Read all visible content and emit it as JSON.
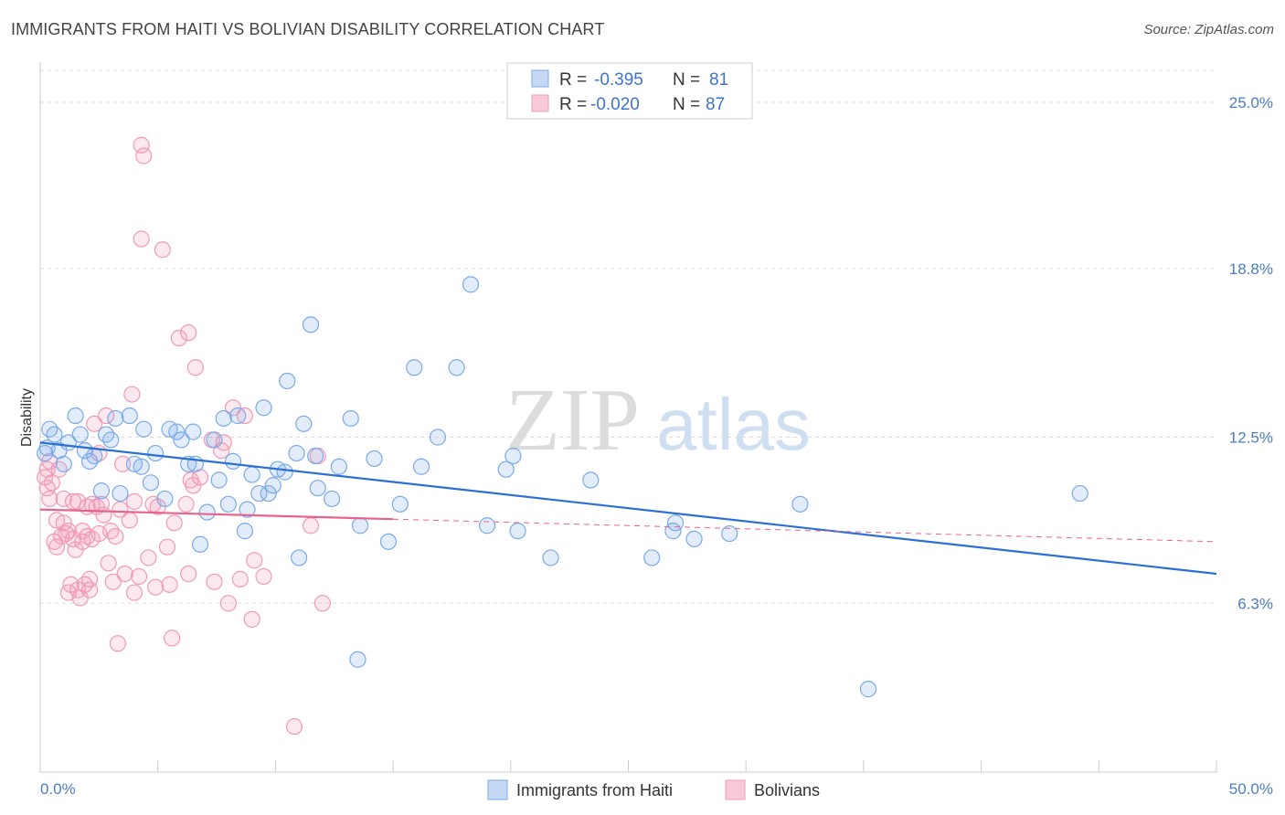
{
  "title": "IMMIGRANTS FROM HAITI VS BOLIVIAN DISABILITY CORRELATION CHART",
  "source": "Source: ZipAtlas.com",
  "watermark": {
    "zip": "ZIP",
    "atlas": "atlas"
  },
  "colors": {
    "haiti": "#7aaae8",
    "haiti_line": "#2a6fd4",
    "bolivia": "#f09ab8",
    "bolivia_line": "#e8628f",
    "tick": "#4a7cc7",
    "grid": "#dddddd"
  },
  "stats": [
    {
      "r_label": "R =",
      "r": "-0.395",
      "n_label": "N =",
      "n": "81"
    },
    {
      "r_label": "R =",
      "r": "-0.020",
      "n_label": "N =",
      "n": "87"
    }
  ],
  "chart_data": {
    "type": "scatter",
    "title": "IMMIGRANTS FROM HAITI VS BOLIVIAN DISABILITY CORRELATION CHART",
    "xlabel": "",
    "ylabel": "Disability",
    "xlim": [
      0,
      50
    ],
    "ylim": [
      0,
      26.5
    ],
    "x_tick_labels": [
      {
        "value": 0,
        "label": "0.0%"
      },
      {
        "value": 50,
        "label": "50.0%"
      }
    ],
    "y_ticks": [
      {
        "value": 6.3,
        "label": "6.3%"
      },
      {
        "value": 12.5,
        "label": "12.5%"
      },
      {
        "value": 18.8,
        "label": "18.8%"
      },
      {
        "value": 25.0,
        "label": "25.0%"
      }
    ],
    "legend_position": "bottom",
    "series": [
      {
        "name": "Immigrants from Haiti",
        "color": "#7aaae8",
        "trend": {
          "x": [
            0,
            50
          ],
          "y": [
            12.3,
            7.4
          ],
          "solid_to": 50
        },
        "points": [
          [
            0.2,
            11.9
          ],
          [
            0.4,
            12.8
          ],
          [
            0.6,
            12.6
          ],
          [
            0.8,
            12.0
          ],
          [
            1.0,
            11.5
          ],
          [
            1.2,
            12.3
          ],
          [
            1.5,
            13.3
          ],
          [
            1.7,
            12.6
          ],
          [
            1.9,
            12.0
          ],
          [
            2.1,
            11.6
          ],
          [
            2.3,
            11.8
          ],
          [
            2.6,
            10.5
          ],
          [
            2.8,
            12.6
          ],
          [
            3.0,
            12.4
          ],
          [
            3.2,
            13.2
          ],
          [
            3.4,
            10.4
          ],
          [
            3.8,
            13.3
          ],
          [
            4.0,
            11.5
          ],
          [
            4.3,
            11.4
          ],
          [
            4.4,
            12.8
          ],
          [
            4.7,
            10.8
          ],
          [
            4.9,
            11.9
          ],
          [
            5.3,
            10.2
          ],
          [
            5.5,
            12.8
          ],
          [
            5.8,
            12.7
          ],
          [
            6.0,
            12.4
          ],
          [
            6.3,
            11.5
          ],
          [
            6.5,
            12.7
          ],
          [
            6.6,
            11.5
          ],
          [
            6.8,
            8.5
          ],
          [
            7.1,
            9.7
          ],
          [
            7.4,
            12.4
          ],
          [
            7.6,
            10.9
          ],
          [
            7.8,
            13.2
          ],
          [
            8.0,
            10.0
          ],
          [
            8.2,
            11.6
          ],
          [
            8.4,
            13.3
          ],
          [
            8.7,
            9.0
          ],
          [
            8.8,
            9.8
          ],
          [
            9.0,
            11.1
          ],
          [
            9.3,
            10.4
          ],
          [
            9.5,
            13.6
          ],
          [
            9.7,
            10.4
          ],
          [
            9.9,
            10.7
          ],
          [
            10.1,
            11.3
          ],
          [
            10.4,
            11.2
          ],
          [
            10.5,
            14.6
          ],
          [
            10.9,
            11.9
          ],
          [
            11.0,
            8.0
          ],
          [
            11.2,
            13.0
          ],
          [
            11.5,
            16.7
          ],
          [
            11.8,
            10.6
          ],
          [
            11.7,
            11.8
          ],
          [
            12.4,
            10.2
          ],
          [
            12.7,
            11.4
          ],
          [
            13.2,
            13.2
          ],
          [
            13.6,
            9.2
          ],
          [
            13.5,
            4.2
          ],
          [
            14.2,
            11.7
          ],
          [
            14.8,
            8.6
          ],
          [
            15.3,
            10.0
          ],
          [
            15.9,
            15.1
          ],
          [
            16.2,
            11.4
          ],
          [
            16.9,
            12.5
          ],
          [
            17.7,
            15.1
          ],
          [
            18.3,
            18.2
          ],
          [
            19.0,
            9.2
          ],
          [
            19.8,
            11.3
          ],
          [
            20.1,
            11.8
          ],
          [
            20.3,
            9.0
          ],
          [
            21.7,
            8.0
          ],
          [
            23.4,
            10.9
          ],
          [
            26.0,
            8.0
          ],
          [
            26.9,
            9.0
          ],
          [
            27.0,
            9.3
          ],
          [
            27.8,
            8.7
          ],
          [
            29.3,
            8.9
          ],
          [
            32.3,
            10.0
          ],
          [
            35.2,
            3.1
          ],
          [
            44.2,
            10.4
          ],
          [
            0.3,
            12.1
          ]
        ]
      },
      {
        "name": "Bolivians",
        "color": "#f09ab8",
        "trend": {
          "x": [
            0,
            50
          ],
          "y": [
            9.8,
            8.6
          ],
          "solid_to": 15
        },
        "points": [
          [
            0.2,
            11.0
          ],
          [
            0.3,
            10.6
          ],
          [
            0.3,
            11.3
          ],
          [
            0.4,
            10.2
          ],
          [
            0.5,
            10.8
          ],
          [
            0.6,
            8.6
          ],
          [
            0.7,
            8.4
          ],
          [
            0.7,
            9.4
          ],
          [
            0.8,
            11.3
          ],
          [
            0.9,
            8.8
          ],
          [
            1.0,
            10.2
          ],
          [
            1.0,
            9.3
          ],
          [
            1.1,
            8.9
          ],
          [
            1.2,
            9.0
          ],
          [
            1.2,
            6.7
          ],
          [
            1.3,
            7.0
          ],
          [
            1.4,
            8.7
          ],
          [
            1.5,
            8.3
          ],
          [
            1.6,
            10.1
          ],
          [
            1.6,
            6.8
          ],
          [
            1.7,
            6.5
          ],
          [
            1.8,
            8.6
          ],
          [
            1.8,
            9.0
          ],
          [
            1.9,
            7.0
          ],
          [
            2.0,
            8.8
          ],
          [
            2.0,
            9.9
          ],
          [
            2.1,
            7.2
          ],
          [
            2.1,
            6.8
          ],
          [
            2.2,
            10.0
          ],
          [
            2.2,
            8.7
          ],
          [
            2.3,
            13.0
          ],
          [
            2.4,
            9.9
          ],
          [
            2.5,
            11.9
          ],
          [
            2.5,
            8.9
          ],
          [
            2.6,
            10.0
          ],
          [
            2.7,
            9.6
          ],
          [
            2.8,
            13.3
          ],
          [
            2.9,
            7.8
          ],
          [
            3.0,
            9.0
          ],
          [
            3.1,
            7.1
          ],
          [
            3.2,
            8.8
          ],
          [
            3.3,
            4.8
          ],
          [
            3.4,
            9.8
          ],
          [
            3.5,
            11.5
          ],
          [
            3.6,
            7.4
          ],
          [
            3.8,
            9.4
          ],
          [
            3.9,
            14.1
          ],
          [
            4.0,
            6.7
          ],
          [
            4.0,
            10.1
          ],
          [
            4.2,
            7.3
          ],
          [
            4.3,
            19.9
          ],
          [
            4.3,
            23.4
          ],
          [
            4.4,
            23.0
          ],
          [
            4.6,
            8.0
          ],
          [
            4.8,
            10.0
          ],
          [
            4.9,
            6.9
          ],
          [
            5.0,
            9.9
          ],
          [
            5.2,
            19.5
          ],
          [
            5.4,
            8.4
          ],
          [
            5.5,
            7.0
          ],
          [
            5.6,
            5.0
          ],
          [
            5.7,
            9.3
          ],
          [
            5.9,
            16.2
          ],
          [
            6.2,
            10.0
          ],
          [
            6.3,
            7.4
          ],
          [
            6.3,
            16.4
          ],
          [
            6.4,
            10.9
          ],
          [
            6.5,
            10.7
          ],
          [
            6.6,
            15.1
          ],
          [
            6.8,
            11.0
          ],
          [
            7.3,
            12.4
          ],
          [
            7.4,
            7.1
          ],
          [
            7.7,
            12.0
          ],
          [
            7.8,
            12.3
          ],
          [
            8.0,
            6.3
          ],
          [
            8.2,
            13.6
          ],
          [
            8.5,
            7.2
          ],
          [
            8.7,
            13.3
          ],
          [
            9.0,
            5.7
          ],
          [
            9.1,
            7.9
          ],
          [
            9.5,
            7.3
          ],
          [
            11.5,
            9.2
          ],
          [
            11.8,
            11.8
          ],
          [
            12.0,
            6.3
          ],
          [
            10.8,
            1.7
          ],
          [
            0.4,
            11.6
          ],
          [
            1.4,
            10.1
          ]
        ]
      }
    ]
  },
  "legend": [
    {
      "label": "Immigrants from Haiti"
    },
    {
      "label": "Bolivians"
    }
  ]
}
